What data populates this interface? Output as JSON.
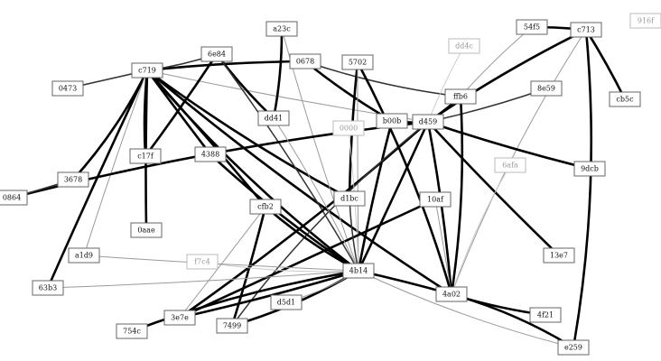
{
  "nodes": [
    {
      "id": "c719",
      "label": "c719",
      "style": "primary"
    },
    {
      "id": "6e84",
      "label": "6e84",
      "style": "primary"
    },
    {
      "id": "a23c",
      "label": "a23c",
      "style": "primary"
    },
    {
      "id": "0678",
      "label": "0678",
      "style": "primary"
    },
    {
      "id": "5702",
      "label": "5702",
      "style": "primary"
    },
    {
      "id": "dd4c",
      "label": "dd4c",
      "style": "secondary"
    },
    {
      "id": "54f5",
      "label": "54f5",
      "style": "primary"
    },
    {
      "id": "c713",
      "label": "c713",
      "style": "primary"
    },
    {
      "id": "916f",
      "label": "916f",
      "style": "secondary"
    },
    {
      "id": "0473",
      "label": "0473",
      "style": "primary"
    },
    {
      "id": "8e59",
      "label": "8e59",
      "style": "primary"
    },
    {
      "id": "ffb6",
      "label": "ffb6",
      "style": "primary"
    },
    {
      "id": "cb5c",
      "label": "cb5c",
      "style": "primary"
    },
    {
      "id": "dd41",
      "label": "dd41",
      "style": "primary"
    },
    {
      "id": "0000",
      "label": "0000",
      "style": "secondary"
    },
    {
      "id": "b00b",
      "label": "b00b",
      "style": "primary"
    },
    {
      "id": "d459",
      "label": "d459",
      "style": "primary"
    },
    {
      "id": "c17f",
      "label": "c17f",
      "style": "primary"
    },
    {
      "id": "4388",
      "label": "4388",
      "style": "primary"
    },
    {
      "id": "6afa",
      "label": "6afa",
      "style": "secondary"
    },
    {
      "id": "9dcb",
      "label": "9dcb",
      "style": "primary"
    },
    {
      "id": "3678",
      "label": "3678",
      "style": "primary"
    },
    {
      "id": "0864",
      "label": "0864",
      "style": "primary"
    },
    {
      "id": "d1bc",
      "label": "d1bc",
      "style": "primary"
    },
    {
      "id": "10af",
      "label": "10af",
      "style": "primary"
    },
    {
      "id": "cfb2",
      "label": "cfb2",
      "style": "primary"
    },
    {
      "id": "0aae",
      "label": "0aae",
      "style": "primary"
    },
    {
      "id": "a1d9",
      "label": "a1d9",
      "style": "primary"
    },
    {
      "id": "f7c4",
      "label": "f7c4",
      "style": "secondary"
    },
    {
      "id": "13e7",
      "label": "13e7",
      "style": "primary"
    },
    {
      "id": "4b14",
      "label": "4b14",
      "style": "primary"
    },
    {
      "id": "63b3",
      "label": "63b3",
      "style": "primary"
    },
    {
      "id": "4a02",
      "label": "4a02",
      "style": "primary"
    },
    {
      "id": "d5d1",
      "label": "d5d1",
      "style": "primary"
    },
    {
      "id": "4f21",
      "label": "4f21",
      "style": "primary"
    },
    {
      "id": "3e7e",
      "label": "3e7e",
      "style": "primary"
    },
    {
      "id": "7499",
      "label": "7499",
      "style": "primary"
    },
    {
      "id": "754c",
      "label": "754c",
      "style": "primary"
    },
    {
      "id": "e259",
      "label": "e259",
      "style": "primary"
    }
  ],
  "edges": [
    {
      "from": "c719",
      "to": "4b14",
      "weight": "heavy"
    },
    {
      "from": "c719",
      "to": "cfb2",
      "weight": "heavy"
    },
    {
      "from": "c719",
      "to": "4388",
      "weight": "heavy"
    },
    {
      "from": "c719",
      "to": "c17f",
      "weight": "heavy"
    },
    {
      "from": "c719",
      "to": "0aae",
      "weight": "heavy"
    },
    {
      "from": "c719",
      "to": "3678",
      "weight": "heavy"
    },
    {
      "from": "c719",
      "to": "63b3",
      "weight": "heavy"
    },
    {
      "from": "c719",
      "to": "0473",
      "weight": "medium"
    },
    {
      "from": "c719",
      "to": "0678",
      "weight": "heavy"
    },
    {
      "from": "c719",
      "to": "d1bc",
      "weight": "heavy"
    },
    {
      "from": "c719",
      "to": "6e84",
      "weight": "medium"
    },
    {
      "from": "c719",
      "to": "d459",
      "weight": "light"
    },
    {
      "from": "c719",
      "to": "4a02",
      "weight": "heavy"
    },
    {
      "from": "c719",
      "to": "a1d9",
      "weight": "light"
    },
    {
      "from": "6e84",
      "to": "dd41",
      "weight": "heavy"
    },
    {
      "from": "6e84",
      "to": "c17f",
      "weight": "heavy"
    },
    {
      "from": "6e84",
      "to": "4b14",
      "weight": "medium"
    },
    {
      "from": "a23c",
      "to": "dd41",
      "weight": "heavy"
    },
    {
      "from": "a23c",
      "to": "4b14",
      "weight": "light"
    },
    {
      "from": "0678",
      "to": "b00b",
      "weight": "heavy"
    },
    {
      "from": "0678",
      "to": "ffb6",
      "weight": "medium"
    },
    {
      "from": "5702",
      "to": "d1bc",
      "weight": "heavy"
    },
    {
      "from": "5702",
      "to": "4b14",
      "weight": "light"
    },
    {
      "from": "54f5",
      "to": "c713",
      "weight": "heavy"
    },
    {
      "from": "54f5",
      "to": "ffb6",
      "weight": "light"
    },
    {
      "from": "c713",
      "to": "d459",
      "weight": "heavy"
    },
    {
      "from": "c713",
      "to": "cb5c",
      "weight": "heavy"
    },
    {
      "from": "c713",
      "to": "e259",
      "weight": "heavy"
    },
    {
      "from": "c713",
      "to": "4a02",
      "weight": "light"
    },
    {
      "from": "dd4c",
      "to": "d459",
      "weight": "faint"
    },
    {
      "from": "8e59",
      "to": "d459",
      "weight": "medium"
    },
    {
      "from": "ffb6",
      "to": "d459",
      "weight": "heavy"
    },
    {
      "from": "b00b",
      "to": "d459",
      "weight": "heavy"
    },
    {
      "from": "b00b",
      "to": "4b14",
      "weight": "heavy"
    },
    {
      "from": "d459",
      "to": "9dcb",
      "weight": "heavy"
    },
    {
      "from": "d459",
      "to": "13e7",
      "weight": "heavy"
    },
    {
      "from": "d459",
      "to": "4a02",
      "weight": "heavy"
    },
    {
      "from": "d459",
      "to": "4b14",
      "weight": "heavy"
    },
    {
      "from": "d459",
      "to": "3e7e",
      "weight": "heavy"
    },
    {
      "from": "d459",
      "to": "7499",
      "weight": "medium"
    },
    {
      "from": "d459",
      "to": "0864",
      "weight": "heavy"
    },
    {
      "from": "6afa",
      "to": "4a02",
      "weight": "faint"
    },
    {
      "from": "0000",
      "to": "4b14",
      "weight": "faint"
    },
    {
      "from": "10af",
      "to": "3e7e",
      "weight": "heavy"
    },
    {
      "from": "10af",
      "to": "4a02",
      "weight": "light"
    },
    {
      "from": "4388",
      "to": "4b14",
      "weight": "heavy"
    },
    {
      "from": "cfb2",
      "to": "4b14",
      "weight": "heavy"
    },
    {
      "from": "cfb2",
      "to": "7499",
      "weight": "heavy"
    },
    {
      "from": "d1bc",
      "to": "4b14",
      "weight": "medium"
    },
    {
      "from": "dd41",
      "to": "4b14",
      "weight": "light"
    },
    {
      "from": "4b14",
      "to": "4a02",
      "weight": "heavy"
    },
    {
      "from": "4b14",
      "to": "3e7e",
      "weight": "heavy"
    },
    {
      "from": "4b14",
      "to": "7499",
      "weight": "heavy"
    },
    {
      "from": "4b14",
      "to": "754c",
      "weight": "heavy"
    },
    {
      "from": "4b14",
      "to": "d5d1",
      "weight": "light"
    },
    {
      "from": "4b14",
      "to": "f7c4",
      "weight": "faint"
    },
    {
      "from": "4a02",
      "to": "4f21",
      "weight": "heavy"
    },
    {
      "from": "4a02",
      "to": "e259",
      "weight": "heavy"
    },
    {
      "from": "4a02",
      "to": "ffb6",
      "weight": "heavy"
    },
    {
      "from": "4a02",
      "to": "5702",
      "weight": "heavy"
    },
    {
      "from": "3e7e",
      "to": "cfb2",
      "weight": "light"
    },
    {
      "from": "3678",
      "to": "0864",
      "weight": "medium"
    },
    {
      "from": "63b3",
      "to": "4b14",
      "weight": "light"
    },
    {
      "from": "a1d9",
      "to": "4b14",
      "weight": "light"
    },
    {
      "from": "e259",
      "to": "4b14",
      "weight": "light"
    }
  ]
}
